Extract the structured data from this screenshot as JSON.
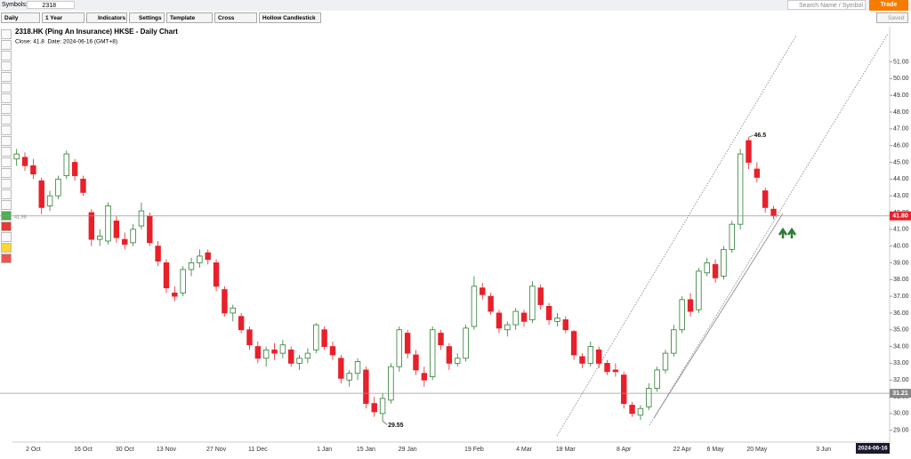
{
  "toolbar": {
    "symbols_label": "Symbols:",
    "symbol": "2318",
    "period": "Daily",
    "range": "1 Year",
    "indicators": "Indicators",
    "settings": "Settings",
    "template": "Template",
    "cursor": "Cross",
    "chart_style": "Hollow Candlestick",
    "search_placeholder": "Search Name / Symbol",
    "trade": "Trade",
    "saved": "Saved"
  },
  "chart_data": {
    "type": "candlestick",
    "title": "2318.HK (Ping An Insurance) HKSE - Daily Chart",
    "subtitle": "Close: 41.8  Date: 2024-06-16 (GMT+8)",
    "left_label": "41.98",
    "date_box": "2024-06-16",
    "up_color": "#2e7d32",
    "down_color": "#e8202a",
    "categories": [
      null,
      null,
      "2 Oct",
      null,
      null,
      null,
      null,
      null,
      "16 Oct",
      null,
      null,
      null,
      null,
      "30 Oct",
      null,
      null,
      null,
      null,
      "13 Nov",
      null,
      null,
      null,
      null,
      null,
      "27 Nov",
      null,
      null,
      null,
      null,
      "11 Dec",
      null,
      null,
      null,
      null,
      null,
      null,
      null,
      "1 Jan",
      null,
      null,
      null,
      null,
      "15 Jan",
      null,
      null,
      null,
      null,
      "29 Jan",
      null,
      null,
      null,
      null,
      null,
      null,
      null,
      "19 Feb",
      null,
      null,
      null,
      null,
      null,
      "4 Mar",
      null,
      null,
      null,
      null,
      "18 Mar",
      null,
      null,
      null,
      null,
      null,
      null,
      "8 Apr",
      null,
      null,
      null,
      null,
      null,
      null,
      "22 Apr",
      null,
      null,
      null,
      "6 May",
      null,
      null,
      null,
      null,
      "20 May",
      null,
      null,
      null,
      null,
      null,
      null,
      null,
      "3 Jun",
      null,
      null
    ],
    "open": [
      45.2,
      45.3,
      44.8,
      43.9,
      42.4,
      43.0,
      44.2,
      45.0,
      44.0,
      42.0,
      40.4,
      40.3,
      41.5,
      40.4,
      40.2,
      41.2,
      41.8,
      40.0,
      39.0,
      37.2,
      37.2,
      38.6,
      39.0,
      39.6,
      39.0,
      37.4,
      36.0,
      35.8,
      35.0,
      34.0,
      33.3,
      33.8,
      33.6,
      33.8,
      33.0,
      33.3,
      33.8,
      35.0,
      34.0,
      33.3,
      32.0,
      32.4,
      32.6,
      30.6,
      30.0,
      30.8,
      32.8,
      34.8,
      33.5,
      32.4,
      32.2,
      34.8,
      34.0,
      33.0,
      33.3,
      35.2,
      37.5,
      37.0,
      36.0,
      35.0,
      35.3,
      36.0,
      35.6,
      37.5,
      36.4,
      35.5,
      35.6,
      34.9,
      33.4,
      33.0,
      33.8,
      33.0,
      32.6,
      32.3,
      30.5,
      29.9,
      30.4,
      31.5,
      32.6,
      33.6,
      35.0,
      36.8,
      36.2,
      38.4,
      38.9,
      38.2,
      39.8,
      41.3,
      46.3,
      44.6,
      43.3,
      42.2,
      null,
      null,
      null,
      null,
      null,
      null,
      null,
      null
    ],
    "high": [
      45.8,
      45.6,
      45.2,
      44.1,
      43.3,
      44.2,
      45.7,
      45.2,
      44.2,
      42.2,
      41.0,
      42.6,
      41.8,
      40.8,
      41.3,
      42.6,
      42.0,
      40.3,
      39.2,
      37.6,
      38.8,
      39.3,
      39.8,
      39.8,
      39.2,
      37.6,
      36.5,
      36.0,
      35.2,
      34.3,
      34.0,
      34.2,
      34.4,
      34.0,
      33.5,
      33.9,
      35.4,
      35.2,
      34.3,
      33.5,
      32.6,
      33.3,
      32.8,
      31.0,
      31.2,
      33.0,
      35.2,
      35.0,
      33.8,
      32.8,
      35.2,
      35.0,
      34.2,
      33.6,
      35.3,
      38.2,
      37.8,
      37.2,
      36.2,
      35.5,
      36.3,
      36.2,
      37.9,
      37.7,
      36.6,
      36.0,
      35.8,
      35.0,
      33.6,
      34.3,
      34.0,
      33.2,
      33.0,
      32.5,
      30.7,
      30.5,
      31.8,
      32.8,
      33.8,
      35.3,
      37.0,
      37.2,
      38.7,
      39.3,
      39.2,
      40.0,
      41.5,
      45.8,
      46.5,
      45.0,
      43.5,
      42.4,
      null,
      null,
      null,
      null,
      null,
      null,
      null,
      null
    ],
    "low": [
      44.8,
      44.5,
      44.0,
      41.9,
      42.1,
      42.8,
      44.0,
      43.9,
      43.0,
      40.0,
      40.0,
      40.1,
      40.2,
      39.8,
      40.0,
      41.0,
      40.0,
      38.8,
      37.2,
      36.7,
      37.0,
      38.2,
      38.7,
      38.9,
      37.3,
      35.8,
      35.5,
      34.8,
      33.8,
      33.0,
      32.8,
      33.2,
      33.3,
      32.8,
      32.6,
      33.0,
      33.6,
      33.8,
      33.2,
      31.8,
      31.6,
      32.0,
      30.3,
      29.8,
      29.55,
      30.6,
      32.5,
      33.3,
      32.3,
      31.6,
      32.0,
      33.8,
      32.6,
      32.8,
      33.1,
      35.0,
      36.8,
      35.9,
      34.8,
      34.6,
      35.0,
      35.2,
      35.4,
      36.2,
      35.3,
      35.2,
      34.8,
      33.2,
      32.7,
      32.8,
      32.7,
      32.3,
      32.2,
      30.3,
      29.8,
      29.6,
      30.2,
      31.3,
      32.4,
      33.4,
      34.8,
      35.8,
      36.0,
      38.2,
      37.8,
      38.0,
      39.6,
      41.0,
      44.6,
      43.8,
      42.0,
      41.6,
      null,
      null,
      null,
      null,
      null,
      null,
      null,
      null
    ],
    "close": [
      45.5,
      44.8,
      44.3,
      42.3,
      43.0,
      44.0,
      45.5,
      44.2,
      43.2,
      40.4,
      40.6,
      42.4,
      40.5,
      40.1,
      41.0,
      42.1,
      40.2,
      39.1,
      37.5,
      37.0,
      38.6,
      39.0,
      39.4,
      39.2,
      37.6,
      36.0,
      36.3,
      35.0,
      34.1,
      33.3,
      33.8,
      33.6,
      34.1,
      33.0,
      33.3,
      33.6,
      35.3,
      34.0,
      33.5,
      32.1,
      32.4,
      33.1,
      30.6,
      30.1,
      30.9,
      32.8,
      35.0,
      33.6,
      32.6,
      32.0,
      35.0,
      34.1,
      33.0,
      33.3,
      35.1,
      37.6,
      37.1,
      36.1,
      35.1,
      35.3,
      36.1,
      35.5,
      37.6,
      36.5,
      35.6,
      35.7,
      35.0,
      33.5,
      33.0,
      34.0,
      33.0,
      32.5,
      32.5,
      30.6,
      30.0,
      30.3,
      31.5,
      32.6,
      33.6,
      35.0,
      36.8,
      36.1,
      38.5,
      39.0,
      38.1,
      39.8,
      41.3,
      45.5,
      45.0,
      44.1,
      42.3,
      41.8,
      null,
      null,
      null,
      null,
      null,
      null,
      null,
      null
    ],
    "ylim": [
      28.4,
      53.1
    ],
    "yticks": [
      {
        "value": 29,
        "label": "29.00"
      },
      {
        "value": 30,
        "label": "30.00"
      },
      {
        "value": 31,
        "label": "31.00"
      },
      {
        "value": 32,
        "label": "32.00"
      },
      {
        "value": 33,
        "label": "33.00"
      },
      {
        "value": 34,
        "label": "34.00"
      },
      {
        "value": 35,
        "label": "35.00"
      },
      {
        "value": 36,
        "label": "36.00"
      },
      {
        "value": 37,
        "label": "37.00"
      },
      {
        "value": 38,
        "label": "38.00"
      },
      {
        "value": 39,
        "label": "39.00"
      },
      {
        "value": 40,
        "label": "40.00"
      },
      {
        "value": 41,
        "label": "41.00"
      },
      {
        "value": 42,
        "label": "42.00"
      },
      {
        "value": 43,
        "label": "43.00"
      },
      {
        "value": 44,
        "label": "44.00"
      },
      {
        "value": 45,
        "label": "45.00"
      },
      {
        "value": 46,
        "label": "46.00"
      },
      {
        "value": 47,
        "label": "47.00"
      },
      {
        "value": 48,
        "label": "48.00"
      },
      {
        "value": 49,
        "label": "49.00"
      },
      {
        "value": 50,
        "label": "50.00"
      },
      {
        "value": 51,
        "label": "51.00"
      }
    ],
    "price_lines": [
      {
        "value": 41.8,
        "label": "41.80",
        "color": "#e8202a"
      },
      {
        "value": 31.21,
        "label": "31.21",
        "color": "#888888"
      }
    ],
    "annotations": [
      {
        "value": 46.5,
        "label": "46.5",
        "at": "high"
      },
      {
        "value": 29.55,
        "label": "29.55",
        "at": "low"
      }
    ]
  }
}
